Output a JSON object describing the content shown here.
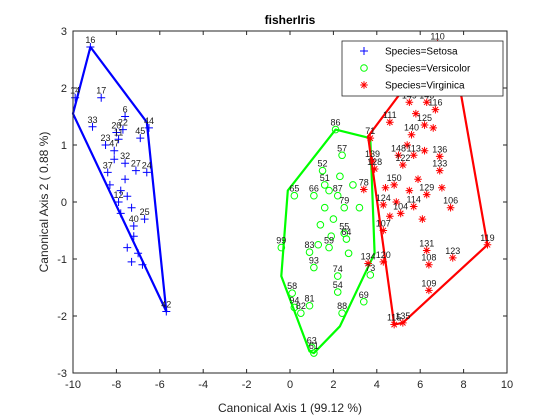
{
  "chart_data": {
    "type": "scatter",
    "title": "fisherIris",
    "xlabel": "Canonical Axis 1 (99.12 %)",
    "ylabel": "Canonical Axis 2 ( 0.88 %)",
    "xlim": [
      -10,
      10
    ],
    "ylim": [
      -3,
      3
    ],
    "xticks": [
      "-10",
      "-8",
      "-6",
      "-4",
      "-2",
      "0",
      "2",
      "4",
      "6",
      "8",
      "10"
    ],
    "yticks": [
      "-3",
      "-2",
      "-1",
      "0",
      "1",
      "2",
      "3"
    ],
    "grid": false,
    "legend_position": "top-right",
    "series": [
      {
        "name": "Species=Setosa",
        "color": "#0000ff",
        "marker": "plus",
        "hull": [
          [
            -9.2,
            2.72
          ],
          [
            -6.6,
            1.4
          ],
          [
            -5.7,
            -1.92
          ],
          [
            -10.0,
            1.55
          ]
        ],
        "points": [
          {
            "id": "16",
            "x": -9.2,
            "y": 2.72
          },
          {
            "id": "14",
            "x": -9.9,
            "y": 1.83
          },
          {
            "id": "17",
            "x": -8.7,
            "y": 1.83
          },
          {
            "id": "33",
            "x": -9.1,
            "y": 1.32
          },
          {
            "id": "6",
            "x": -7.6,
            "y": 1.5
          },
          {
            "id": "22",
            "x": -7.7,
            "y": 1.27
          },
          {
            "id": "20",
            "x": -8.0,
            "y": 1.22
          },
          {
            "id": "11",
            "x": -7.9,
            "y": 1.1
          },
          {
            "id": "44",
            "x": -6.5,
            "y": 1.3
          },
          {
            "id": "45",
            "x": -6.9,
            "y": 1.12
          },
          {
            "id": "23",
            "x": -8.5,
            "y": 1.0
          },
          {
            "id": "47",
            "x": -8.1,
            "y": 0.9
          },
          {
            "id": "32",
            "x": -7.6,
            "y": 0.68
          },
          {
            "id": "27",
            "x": -7.1,
            "y": 0.55
          },
          {
            "id": "24",
            "x": -6.6,
            "y": 0.52
          },
          {
            "id": "37",
            "x": -8.4,
            "y": 0.52
          },
          {
            "id": "12",
            "x": -7.9,
            "y": 0.0
          },
          {
            "id": "25",
            "x": -6.7,
            "y": -0.3
          },
          {
            "id": "40",
            "x": -7.2,
            "y": -0.42
          },
          {
            "id": "42",
            "x": -5.7,
            "y": -1.92
          },
          {
            "x": -8.3,
            "y": 0.3
          },
          {
            "x": -7.8,
            "y": 0.2
          },
          {
            "x": -7.5,
            "y": 0.1
          },
          {
            "x": -7.3,
            "y": -0.1
          },
          {
            "x": -7.8,
            "y": -0.2
          },
          {
            "x": -7.2,
            "y": -0.6
          },
          {
            "x": -7.5,
            "y": -0.8
          },
          {
            "x": -7.0,
            "y": -0.9
          },
          {
            "x": -7.3,
            "y": -1.05
          },
          {
            "x": -6.8,
            "y": -1.1
          },
          {
            "x": -8.1,
            "y": 0.75
          },
          {
            "x": -7.6,
            "y": 0.4
          }
        ]
      },
      {
        "name": "Species=Versicolor",
        "color": "#00ff00",
        "marker": "circle",
        "hull": [
          [
            2.1,
            1.27
          ],
          [
            3.7,
            1.12
          ],
          [
            3.9,
            -0.9
          ],
          [
            2.3,
            -2.18
          ],
          [
            1.1,
            -2.65
          ],
          [
            0.9,
            -2.62
          ],
          [
            -0.4,
            -1.3
          ],
          [
            -0.1,
            0.2
          ]
        ],
        "points": [
          {
            "id": "86",
            "x": 2.1,
            "y": 1.27
          },
          {
            "id": "57",
            "x": 2.4,
            "y": 0.82
          },
          {
            "id": "52",
            "x": 1.5,
            "y": 0.55
          },
          {
            "id": "65",
            "x": 0.2,
            "y": 0.11
          },
          {
            "id": "66",
            "x": 1.1,
            "y": 0.11
          },
          {
            "id": "87",
            "x": 2.2,
            "y": 0.11
          },
          {
            "id": "51",
            "x": 1.6,
            "y": 0.3
          },
          {
            "id": "79",
            "x": 2.5,
            "y": -0.1
          },
          {
            "id": "55",
            "x": 2.5,
            "y": -0.55
          },
          {
            "id": "64",
            "x": 2.6,
            "y": -0.65
          },
          {
            "id": "99",
            "x": -0.4,
            "y": -0.8
          },
          {
            "id": "83",
            "x": 0.9,
            "y": -0.88
          },
          {
            "id": "59",
            "x": 1.8,
            "y": -0.8
          },
          {
            "id": "93",
            "x": 1.1,
            "y": -1.15
          },
          {
            "id": "74",
            "x": 2.2,
            "y": -1.3
          },
          {
            "id": "73",
            "x": 3.7,
            "y": -1.28
          },
          {
            "id": "58",
            "x": 0.1,
            "y": -1.6
          },
          {
            "id": "94",
            "x": 0.2,
            "y": -1.85
          },
          {
            "id": "81",
            "x": 0.9,
            "y": -1.82
          },
          {
            "id": "82",
            "x": 0.5,
            "y": -1.95
          },
          {
            "id": "54",
            "x": 2.2,
            "y": -1.58
          },
          {
            "id": "69",
            "x": 3.4,
            "y": -1.75
          },
          {
            "id": "88",
            "x": 2.4,
            "y": -1.95
          },
          {
            "id": "63",
            "x": 1.0,
            "y": -2.55
          },
          {
            "id": "61",
            "x": 1.1,
            "y": -2.65
          },
          {
            "x": 1.8,
            "y": 0.2
          },
          {
            "x": 1.6,
            "y": -0.1
          },
          {
            "x": 2.0,
            "y": -0.3
          },
          {
            "x": 1.4,
            "y": -0.4
          },
          {
            "x": 2.3,
            "y": 0.45
          },
          {
            "x": 1.9,
            "y": -0.6
          },
          {
            "x": 2.9,
            "y": 0.3
          },
          {
            "x": 3.2,
            "y": -0.1
          },
          {
            "x": 1.3,
            "y": -0.75
          },
          {
            "x": 2.7,
            "y": -0.9
          }
        ]
      },
      {
        "name": "Species=Virginica",
        "color": "#ff0000",
        "marker": "star",
        "hull": [
          [
            6.8,
            2.78
          ],
          [
            7.9,
            1.85
          ],
          [
            9.1,
            -0.75
          ],
          [
            5.2,
            -2.12
          ],
          [
            4.8,
            -2.15
          ],
          [
            3.6,
            1.15
          ]
        ],
        "points": [
          {
            "id": "110",
            "x": 6.8,
            "y": 2.78
          },
          {
            "id": "71",
            "x": 3.7,
            "y": 1.12
          },
          {
            "id": "149",
            "x": 5.5,
            "y": 1.75
          },
          {
            "id": "146",
            "x": 6.3,
            "y": 1.75
          },
          {
            "id": "116",
            "x": 6.7,
            "y": 1.62
          },
          {
            "id": "111",
            "x": 4.6,
            "y": 1.4
          },
          {
            "id": "125",
            "x": 6.2,
            "y": 1.35
          },
          {
            "id": "140",
            "x": 5.6,
            "y": 1.18
          },
          {
            "id": "148",
            "x": 5.0,
            "y": 0.82
          },
          {
            "id": "113",
            "x": 5.7,
            "y": 0.82
          },
          {
            "id": "136",
            "x": 6.9,
            "y": 0.8
          },
          {
            "id": "139",
            "x": 3.8,
            "y": 0.72
          },
          {
            "id": "133",
            "x": 6.9,
            "y": 0.55
          },
          {
            "id": "128",
            "x": 3.9,
            "y": 0.58
          },
          {
            "id": "150",
            "x": 4.8,
            "y": 0.3
          },
          {
            "id": "122",
            "x": 5.2,
            "y": 0.65
          },
          {
            "id": "129",
            "x": 6.3,
            "y": 0.13
          },
          {
            "id": "78",
            "x": 3.4,
            "y": 0.22
          },
          {
            "id": "106",
            "x": 7.4,
            "y": -0.1
          },
          {
            "id": "124",
            "x": 4.3,
            "y": -0.05
          },
          {
            "id": "114",
            "x": 5.7,
            "y": -0.08
          },
          {
            "id": "104",
            "x": 5.1,
            "y": -0.2
          },
          {
            "id": "107",
            "x": 4.3,
            "y": -0.5
          },
          {
            "id": "131",
            "x": 6.3,
            "y": -0.85
          },
          {
            "id": "134",
            "x": 3.6,
            "y": -1.08
          },
          {
            "id": "120",
            "x": 4.3,
            "y": -1.05
          },
          {
            "id": "108",
            "x": 6.4,
            "y": -1.1
          },
          {
            "id": "123",
            "x": 7.5,
            "y": -0.98
          },
          {
            "id": "119",
            "x": 9.1,
            "y": -0.75
          },
          {
            "id": "109",
            "x": 6.4,
            "y": -1.55
          },
          {
            "id": "115",
            "x": 4.8,
            "y": -2.15
          },
          {
            "id": "135",
            "x": 5.2,
            "y": -2.12
          },
          {
            "x": 4.4,
            "y": 0.25
          },
          {
            "x": 5.9,
            "y": 0.4
          },
          {
            "x": 6.2,
            "y": 0.9
          },
          {
            "x": 5.4,
            "y": 1.0
          },
          {
            "x": 4.9,
            "y": 0.0
          },
          {
            "x": 6.1,
            "y": -0.3
          },
          {
            "x": 4.6,
            "y": -0.25
          },
          {
            "x": 5.5,
            "y": 0.2
          },
          {
            "x": 7.0,
            "y": 0.25
          },
          {
            "x": 5.8,
            "y": 1.55
          },
          {
            "x": 6.6,
            "y": 1.3
          }
        ]
      }
    ]
  }
}
